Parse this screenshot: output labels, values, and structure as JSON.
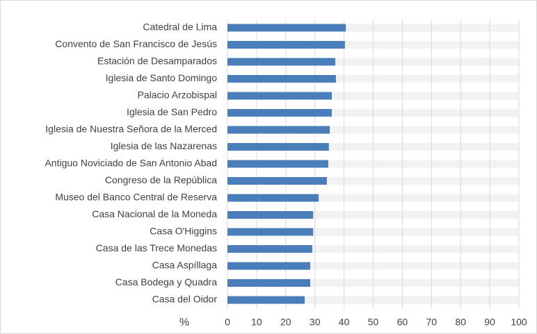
{
  "chart_data": {
    "type": "bar",
    "orientation": "horizontal",
    "x_label": "%",
    "categories": [
      "Catedral de Lima",
      "Convento de San Francisco de Jesús",
      "Estación de Desamparados",
      "Iglesia de Santo Domingo",
      "Palacio Arzobispal",
      "Iglesia de San Pedro",
      "Iglesia de Nuestra Señora de la Merced",
      "Iglesia de las Nazarenas",
      "Antiguo Noviciado de San Antonio Abad",
      "Congreso de la República",
      "Museo del Banco Central de Reserva",
      "Casa Nacional de la Moneda",
      "Casa O'Higgins",
      "Casa de las Trece Monedas",
      "Casa Aspíllaga",
      "Casa Bodega y Quadra",
      "Casa del Oidor"
    ],
    "values": [
      40.6,
      40.3,
      37.0,
      37.2,
      35.8,
      35.8,
      35.1,
      34.8,
      34.6,
      34.1,
      31.3,
      29.4,
      29.4,
      29.1,
      28.4,
      28.4,
      26.5
    ],
    "color": "#4a7ebb",
    "xlim": [
      0,
      100
    ],
    "xticks": [
      0,
      10,
      20,
      30,
      40,
      50,
      60,
      70,
      80,
      90,
      100
    ],
    "grid": true
  }
}
